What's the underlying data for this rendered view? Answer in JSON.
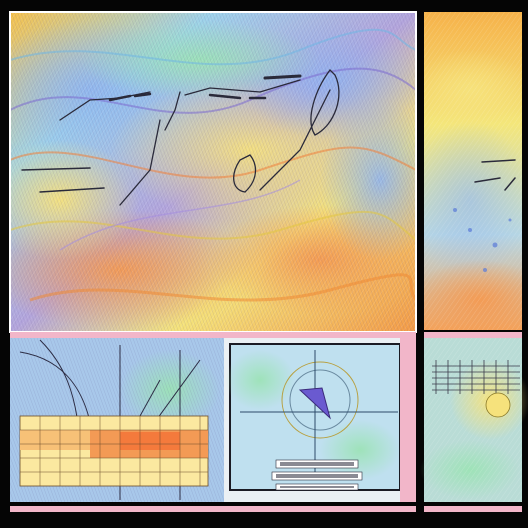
{
  "scene": {
    "style": "psychedelic abstract map collage",
    "panels": [
      "main-swirl-map",
      "right-edge-map",
      "lower-left-chart-panel",
      "lower-center-globe-panel",
      "lower-right-texture-panel"
    ]
  },
  "colors": {
    "frame": "#050505",
    "sky_blue": "#8ec8ee",
    "lavender": "#a9a7e0",
    "yellow": "#f4e27a",
    "orange": "#f3a452",
    "mint": "#9fe3b6",
    "pink": "#f2b6c9",
    "panel_frame": "#1b1b24"
  },
  "captions": {
    "lower_center_line1": "",
    "lower_center_line2": "",
    "lower_center_line3": ""
  }
}
